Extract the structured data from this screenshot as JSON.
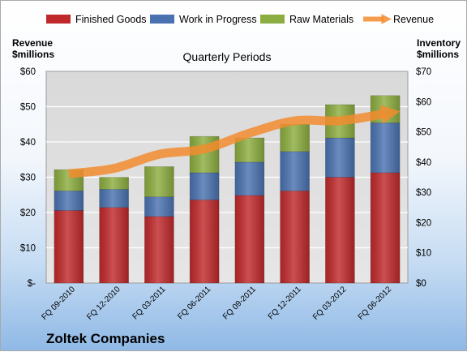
{
  "chart_data": {
    "type": "bar",
    "title": "Quarterly Periods",
    "company": "Zoltek Companies",
    "categories": [
      "FQ 09-2010",
      "FQ 12-2010",
      "FQ 03-2011",
      "FQ 06-2011",
      "FQ 09-2011",
      "FQ 12-2011",
      "FQ 03-2012",
      "FQ 06-2012"
    ],
    "series": [
      {
        "name": "Finished Goods",
        "axis": "right",
        "color": "#c0292b",
        "values": [
          24,
          25,
          22,
          27.5,
          29,
          30.5,
          35,
          36.5
        ]
      },
      {
        "name": "Work in Progress",
        "axis": "right",
        "color": "#4a72b0",
        "values": [
          6.5,
          6,
          6.5,
          9,
          11,
          13,
          13,
          16.5
        ]
      },
      {
        "name": "Raw Materials",
        "axis": "right",
        "color": "#8cad3f",
        "values": [
          7,
          4,
          10,
          12,
          8,
          9,
          11,
          9
        ]
      },
      {
        "name": "Revenue",
        "axis": "left",
        "type": "line",
        "color": "#f28c2f",
        "values": [
          31,
          32.5,
          36.5,
          38,
          42.5,
          46,
          46,
          48
        ]
      }
    ],
    "left_axis": {
      "label_line1": "Revenue",
      "label_line2": "$millions",
      "range": [
        0,
        60
      ],
      "ticks": [
        "$-",
        "$10",
        "$20",
        "$30",
        "$40",
        "$50",
        "$60"
      ]
    },
    "right_axis": {
      "label_line1": "Inventory",
      "label_line2": "$millions",
      "range": [
        0,
        70
      ],
      "ticks": [
        "$0",
        "$10",
        "$20",
        "$30",
        "$40",
        "$50",
        "$60",
        "$70"
      ]
    },
    "legend_position": "top",
    "grid": true
  }
}
